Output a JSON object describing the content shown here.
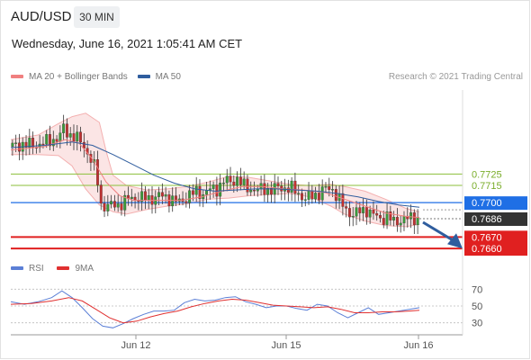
{
  "header": {
    "symbol": "AUD/USD",
    "timeframe": "30 MIN",
    "datetime": "Wednesday, June 16, 2021 1:05:41 AM CET"
  },
  "legend": {
    "ma20_label": "MA 20 + Bollinger Bands",
    "ma20_color": "#f08080",
    "ma50_label": "MA 50",
    "ma50_color": "#2f5d9e",
    "credit": "Research © 2021 Trading Central"
  },
  "rsi_legend": {
    "rsi_label": "RSI",
    "rsi_color": "#5b7fd6",
    "ma_label": "9MA",
    "ma_color": "#e03030"
  },
  "chart_data": [
    {
      "type": "candlestick",
      "title": "AUD/USD 30 MIN",
      "x_ticks": [
        "Jun 12",
        "Jun 15",
        "Jun 16"
      ],
      "ylim": [
        0.7653,
        0.7792
      ],
      "levels": [
        {
          "label": "0.7725",
          "value": 0.7725,
          "kind": "resistance",
          "color": "#8bbf3a"
        },
        {
          "label": "0.7715",
          "value": 0.7715,
          "kind": "resistance",
          "color": "#8bbf3a"
        },
        {
          "label": "0.7700",
          "value": 0.77,
          "kind": "pivot",
          "color": "#1f6fe5"
        },
        {
          "label": "0.7686",
          "value": 0.7686,
          "kind": "last_price",
          "color": "#333333"
        },
        {
          "label": "0.7670",
          "value": 0.767,
          "kind": "support",
          "color": "#e02020"
        },
        {
          "label": "0.7660",
          "value": 0.766,
          "kind": "support",
          "color": "#e02020"
        }
      ],
      "arrow": {
        "direction": "down",
        "color": "#2f5d9e"
      },
      "price_path": [
        [
          0,
          0.7749
        ],
        [
          3,
          0.7751
        ],
        [
          6,
          0.775
        ],
        [
          9,
          0.7752
        ],
        [
          12,
          0.7755
        ],
        [
          14,
          0.7758
        ],
        [
          15,
          0.7765
        ],
        [
          16,
          0.7761
        ],
        [
          18,
          0.7758
        ],
        [
          20,
          0.7753
        ],
        [
          22,
          0.7744
        ],
        [
          24,
          0.7731
        ],
        [
          25,
          0.7718
        ],
        [
          26,
          0.7698
        ],
        [
          28,
          0.7697
        ],
        [
          31,
          0.7698
        ],
        [
          34,
          0.7703
        ],
        [
          37,
          0.7705
        ],
        [
          40,
          0.7703
        ],
        [
          43,
          0.7706
        ],
        [
          46,
          0.7704
        ],
        [
          49,
          0.77
        ],
        [
          52,
          0.7707
        ],
        [
          54,
          0.7709
        ],
        [
          56,
          0.7708
        ],
        [
          58,
          0.7711
        ],
        [
          60,
          0.7712
        ],
        [
          62,
          0.7719
        ],
        [
          64,
          0.7718
        ],
        [
          66,
          0.7721
        ],
        [
          68,
          0.7714
        ],
        [
          70,
          0.7712
        ],
        [
          72,
          0.7711
        ],
        [
          74,
          0.7712
        ],
        [
          76,
          0.7711
        ],
        [
          78,
          0.7713
        ],
        [
          80,
          0.7713
        ],
        [
          82,
          0.7712
        ],
        [
          84,
          0.7708
        ],
        [
          86,
          0.7703
        ],
        [
          88,
          0.7706
        ],
        [
          90,
          0.7708
        ],
        [
          92,
          0.7712
        ],
        [
          94,
          0.7712
        ],
        [
          96,
          0.7702
        ],
        [
          98,
          0.7693
        ],
        [
          100,
          0.769
        ],
        [
          102,
          0.7692
        ],
        [
          104,
          0.7694
        ],
        [
          106,
          0.7689
        ],
        [
          108,
          0.7686
        ],
        [
          110,
          0.7688
        ],
        [
          112,
          0.7683
        ],
        [
          114,
          0.7685
        ],
        [
          116,
          0.7686
        ],
        [
          118,
          0.7687
        ],
        [
          120,
          0.7686
        ]
      ],
      "ma20": [
        [
          0,
          0.7746
        ],
        [
          10,
          0.7749
        ],
        [
          16,
          0.7755
        ],
        [
          20,
          0.7752
        ],
        [
          24,
          0.7738
        ],
        [
          28,
          0.7718
        ],
        [
          32,
          0.7706
        ],
        [
          36,
          0.7702
        ],
        [
          44,
          0.7702
        ],
        [
          50,
          0.7702
        ],
        [
          56,
          0.7705
        ],
        [
          62,
          0.771
        ],
        [
          68,
          0.7714
        ],
        [
          74,
          0.7714
        ],
        [
          80,
          0.7712
        ],
        [
          86,
          0.7711
        ],
        [
          92,
          0.7709
        ],
        [
          98,
          0.7703
        ],
        [
          104,
          0.7697
        ],
        [
          110,
          0.7691
        ],
        [
          116,
          0.7688
        ],
        [
          120,
          0.7687
        ]
      ],
      "ma50": [
        [
          0,
          0.7748
        ],
        [
          10,
          0.775
        ],
        [
          18,
          0.7753
        ],
        [
          24,
          0.775
        ],
        [
          30,
          0.7742
        ],
        [
          36,
          0.7733
        ],
        [
          42,
          0.7724
        ],
        [
          48,
          0.7717
        ],
        [
          54,
          0.7712
        ],
        [
          60,
          0.771
        ],
        [
          66,
          0.7711
        ],
        [
          72,
          0.7712
        ],
        [
          78,
          0.7712
        ],
        [
          84,
          0.7711
        ],
        [
          90,
          0.771
        ],
        [
          96,
          0.7708
        ],
        [
          102,
          0.7705
        ],
        [
          108,
          0.7701
        ],
        [
          114,
          0.7698
        ],
        [
          120,
          0.7696
        ]
      ],
      "bollinger_upper": [
        [
          0,
          0.7755
        ],
        [
          8,
          0.7759
        ],
        [
          14,
          0.7769
        ],
        [
          18,
          0.7775
        ],
        [
          22,
          0.7778
        ],
        [
          26,
          0.777
        ],
        [
          28,
          0.7745
        ],
        [
          30,
          0.7724
        ],
        [
          34,
          0.7715
        ],
        [
          40,
          0.7711
        ],
        [
          46,
          0.7712
        ],
        [
          52,
          0.7714
        ],
        [
          58,
          0.7718
        ],
        [
          64,
          0.7723
        ],
        [
          70,
          0.7722
        ],
        [
          76,
          0.7719
        ],
        [
          82,
          0.7716
        ],
        [
          88,
          0.7715
        ],
        [
          94,
          0.7716
        ],
        [
          98,
          0.7714
        ],
        [
          104,
          0.771
        ],
        [
          110,
          0.7703
        ],
        [
          116,
          0.7695
        ],
        [
          120,
          0.7692
        ]
      ],
      "bollinger_lower": [
        [
          0,
          0.7742
        ],
        [
          8,
          0.7742
        ],
        [
          14,
          0.7741
        ],
        [
          18,
          0.7732
        ],
        [
          22,
          0.7712
        ],
        [
          26,
          0.7698
        ],
        [
          30,
          0.7692
        ],
        [
          34,
          0.769
        ],
        [
          40,
          0.7694
        ],
        [
          46,
          0.7697
        ],
        [
          52,
          0.7699
        ],
        [
          58,
          0.7703
        ],
        [
          64,
          0.7704
        ],
        [
          70,
          0.7706
        ],
        [
          76,
          0.7707
        ],
        [
          82,
          0.7708
        ],
        [
          88,
          0.7705
        ],
        [
          94,
          0.7697
        ],
        [
          98,
          0.769
        ],
        [
          104,
          0.7684
        ],
        [
          110,
          0.768
        ],
        [
          116,
          0.7679
        ],
        [
          120,
          0.7681
        ]
      ]
    },
    {
      "type": "line",
      "title": "RSI",
      "ylim": [
        20,
        80
      ],
      "y_ticks": [
        70,
        50,
        30
      ],
      "series": [
        {
          "name": "RSI",
          "color": "#5b7fd6",
          "points": [
            [
              0,
              55
            ],
            [
              4,
              52
            ],
            [
              8,
              55
            ],
            [
              12,
              60
            ],
            [
              15,
              68
            ],
            [
              18,
              60
            ],
            [
              21,
              48
            ],
            [
              24,
              35
            ],
            [
              27,
              26
            ],
            [
              30,
              24
            ],
            [
              33,
              29
            ],
            [
              36,
              35
            ],
            [
              39,
              40
            ],
            [
              42,
              44
            ],
            [
              45,
              44
            ],
            [
              48,
              45
            ],
            [
              51,
              54
            ],
            [
              54,
              58
            ],
            [
              57,
              56
            ],
            [
              60,
              57
            ],
            [
              63,
              60
            ],
            [
              66,
              61
            ],
            [
              69,
              55
            ],
            [
              72,
              52
            ],
            [
              75,
              48
            ],
            [
              78,
              50
            ],
            [
              81,
              50
            ],
            [
              84,
              47
            ],
            [
              87,
              45
            ],
            [
              90,
              52
            ],
            [
              93,
              50
            ],
            [
              96,
              42
            ],
            [
              99,
              36
            ],
            [
              102,
              42
            ],
            [
              105,
              48
            ],
            [
              108,
              40
            ],
            [
              111,
              42
            ],
            [
              114,
              44
            ],
            [
              117,
              46
            ],
            [
              120,
              48
            ]
          ]
        },
        {
          "name": "9MA",
          "color": "#e03030",
          "points": [
            [
              0,
              52
            ],
            [
              6,
              53
            ],
            [
              12,
              56
            ],
            [
              17,
              60
            ],
            [
              21,
              56
            ],
            [
              25,
              46
            ],
            [
              29,
              36
            ],
            [
              33,
              30
            ],
            [
              37,
              32
            ],
            [
              41,
              37
            ],
            [
              45,
              41
            ],
            [
              49,
              44
            ],
            [
              53,
              49
            ],
            [
              57,
              53
            ],
            [
              61,
              56
            ],
            [
              65,
              58
            ],
            [
              69,
              57
            ],
            [
              73,
              54
            ],
            [
              77,
              51
            ],
            [
              81,
              50
            ],
            [
              85,
              49
            ],
            [
              89,
              48
            ],
            [
              93,
              49
            ],
            [
              97,
              46
            ],
            [
              101,
              42
            ],
            [
              105,
              42
            ],
            [
              109,
              43
            ],
            [
              113,
              43
            ],
            [
              117,
              44
            ],
            [
              120,
              45
            ]
          ]
        }
      ]
    }
  ]
}
